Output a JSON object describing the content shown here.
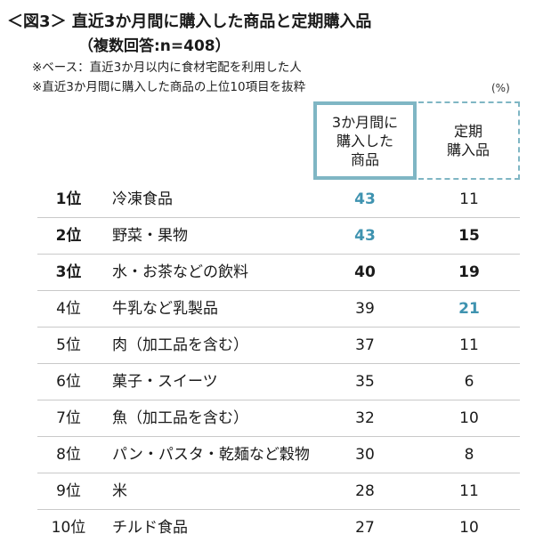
{
  "header": {
    "title": "＜図3＞ 直近3か月間に購入した商品と定期購入品",
    "subtitle": "（複数回答:n=408）",
    "notes": [
      "※ベース：直近3か月以内に食材宅配を利用した人",
      "※直近3か月間に購入した商品の上位10項目を抜粋"
    ],
    "unit": "(%)"
  },
  "colors": {
    "highlight": "#3f93b0",
    "box_border": "#7fb6c4",
    "grid_line": "#c9c9c9"
  },
  "chart_data": {
    "type": "table",
    "columns": [
      "3か月間に\n購入した\n商品",
      "定期\n購入品"
    ],
    "rows": [
      {
        "rank": "1位",
        "item": "冷凍食品",
        "purchased": 43,
        "regular": 11,
        "rank_bold": true,
        "purchased_style": "highlight",
        "regular_style": "normal"
      },
      {
        "rank": "2位",
        "item": "野菜・果物",
        "purchased": 43,
        "regular": 15,
        "rank_bold": true,
        "purchased_style": "highlight",
        "regular_style": "bold"
      },
      {
        "rank": "3位",
        "item": "水・お茶などの飲料",
        "purchased": 40,
        "regular": 19,
        "rank_bold": true,
        "purchased_style": "bold",
        "regular_style": "bold"
      },
      {
        "rank": "4位",
        "item": "牛乳など乳製品",
        "purchased": 39,
        "regular": 21,
        "rank_bold": false,
        "purchased_style": "normal",
        "regular_style": "highlight"
      },
      {
        "rank": "5位",
        "item": "肉（加工品を含む）",
        "purchased": 37,
        "regular": 11,
        "rank_bold": false,
        "purchased_style": "normal",
        "regular_style": "normal"
      },
      {
        "rank": "6位",
        "item": "菓子・スイーツ",
        "purchased": 35,
        "regular": 6,
        "rank_bold": false,
        "purchased_style": "normal",
        "regular_style": "normal"
      },
      {
        "rank": "7位",
        "item": "魚（加工品を含む）",
        "purchased": 32,
        "regular": 10,
        "rank_bold": false,
        "purchased_style": "normal",
        "regular_style": "normal"
      },
      {
        "rank": "8位",
        "item": "パン・パスタ・乾麺など穀物",
        "purchased": 30,
        "regular": 8,
        "rank_bold": false,
        "purchased_style": "normal",
        "regular_style": "normal"
      },
      {
        "rank": "9位",
        "item": "米",
        "purchased": 28,
        "regular": 11,
        "rank_bold": false,
        "purchased_style": "normal",
        "regular_style": "normal"
      },
      {
        "rank": "10位",
        "item": "チルド食品",
        "purchased": 27,
        "regular": 10,
        "rank_bold": false,
        "purchased_style": "normal",
        "regular_style": "normal"
      }
    ]
  }
}
